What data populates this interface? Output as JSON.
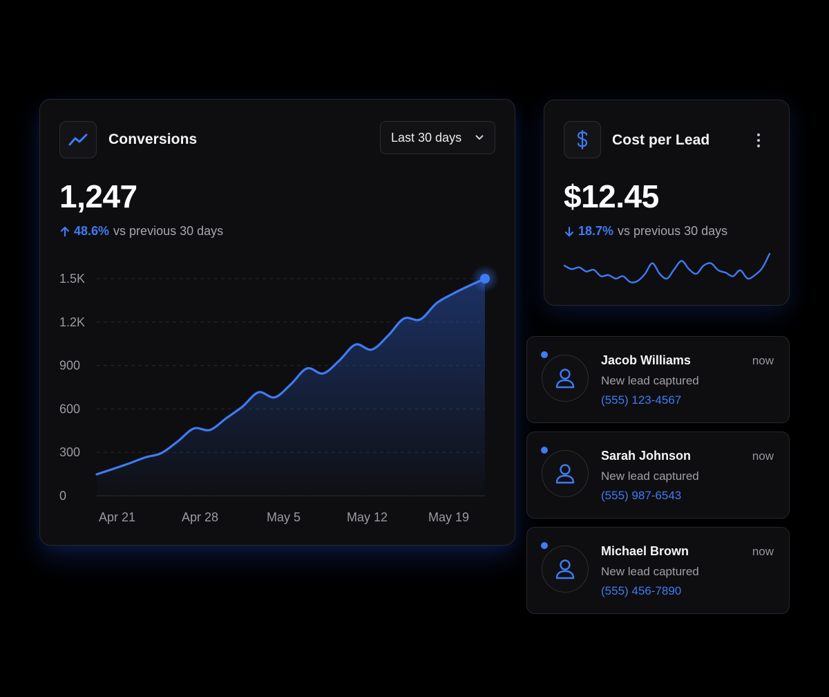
{
  "conversions": {
    "title": "Conversions",
    "icon": "trend-up-icon",
    "value": "1,247",
    "change": {
      "direction": "up",
      "percent": "48.6%",
      "comparison": "vs previous 30 days"
    },
    "range_select": {
      "selected": "Last 30 days"
    },
    "chart_data": {
      "type": "area",
      "x_tick_labels": [
        "Apr 21",
        "Apr 28",
        "May 5",
        "May 12",
        "May 19"
      ],
      "y_tick_labels": [
        "0",
        "300",
        "600",
        "900",
        "1.2K",
        "1.5K"
      ],
      "y_ticks": [
        0,
        300,
        600,
        900,
        1200,
        1500
      ],
      "ylim": [
        0,
        1500
      ],
      "grid": true,
      "series": [
        {
          "color": "#3f7bf5",
          "values": [
            148,
            185,
            223,
            265,
            295,
            375,
            465,
            455,
            535,
            615,
            715,
            680,
            770,
            880,
            845,
            935,
            1045,
            1010,
            1105,
            1225,
            1218,
            1330,
            1395,
            1450,
            1500
          ]
        }
      ]
    }
  },
  "cost_per_lead": {
    "title": "Cost per Lead",
    "icon": "dollar-icon",
    "value": "$12.45",
    "change": {
      "direction": "down",
      "percent": "18.7%",
      "comparison": "vs previous 30 days"
    },
    "sparkline": {
      "color": "#3f7bf5",
      "values": [
        3,
        2.4,
        2.7,
        2,
        2.3,
        1.2,
        1.4,
        0.8,
        1.2,
        0.2,
        0.4,
        1.6,
        3.4,
        1.6,
        0.8,
        2.4,
        3.8,
        2.4,
        1.6,
        3,
        3.4,
        2.2,
        1.8,
        1.2,
        2.2,
        0.8,
        1.4,
        2.6,
        5
      ]
    }
  },
  "leads": [
    {
      "name": "Jacob Williams",
      "time": "now",
      "status": "New lead captured",
      "phone": "(555) 123-4567"
    },
    {
      "name": "Sarah Johnson",
      "time": "now",
      "status": "New lead captured",
      "phone": "(555) 987-6543"
    },
    {
      "name": "Michael Brown",
      "time": "now",
      "status": "New lead captured",
      "phone": "(555) 456-7890"
    }
  ]
}
